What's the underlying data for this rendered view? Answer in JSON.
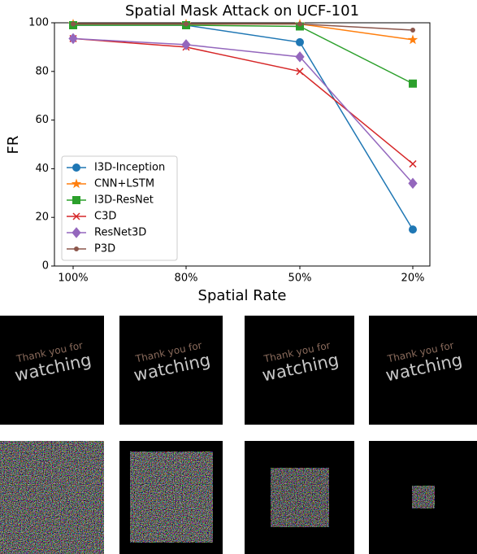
{
  "chart_data": {
    "type": "line",
    "title": "Spatial Mask Attack on UCF-101",
    "xlabel": "Spatial Rate",
    "ylabel": "FR",
    "categories": [
      "100%",
      "80%",
      "50%",
      "20%"
    ],
    "ylim": [
      0,
      100
    ],
    "yticks": [
      0,
      20,
      40,
      60,
      80,
      100
    ],
    "legend": "lower left",
    "series": [
      {
        "name": "I3D-Inception",
        "color": "#1f77b4",
        "marker": "circle",
        "values": [
          99,
          99,
          92,
          15
        ]
      },
      {
        "name": "CNN+LSTM",
        "color": "#ff7f0e",
        "marker": "star",
        "values": [
          99.5,
          99.5,
          99.5,
          93
        ]
      },
      {
        "name": "I3D-ResNet",
        "color": "#2ca02c",
        "marker": "square",
        "values": [
          99,
          99,
          98.5,
          75
        ]
      },
      {
        "name": "C3D",
        "color": "#d62728",
        "marker": "x",
        "values": [
          93.5,
          90,
          80,
          42
        ]
      },
      {
        "name": "ResNet3D",
        "color": "#9467bd",
        "marker": "diamond",
        "values": [
          93.5,
          91,
          86,
          34
        ]
      },
      {
        "name": "P3D",
        "color": "#8c564b",
        "marker": "dot",
        "values": [
          99.5,
          99.5,
          99.5,
          97
        ]
      }
    ]
  },
  "frame_text": [
    "Thank you for",
    "watching"
  ]
}
